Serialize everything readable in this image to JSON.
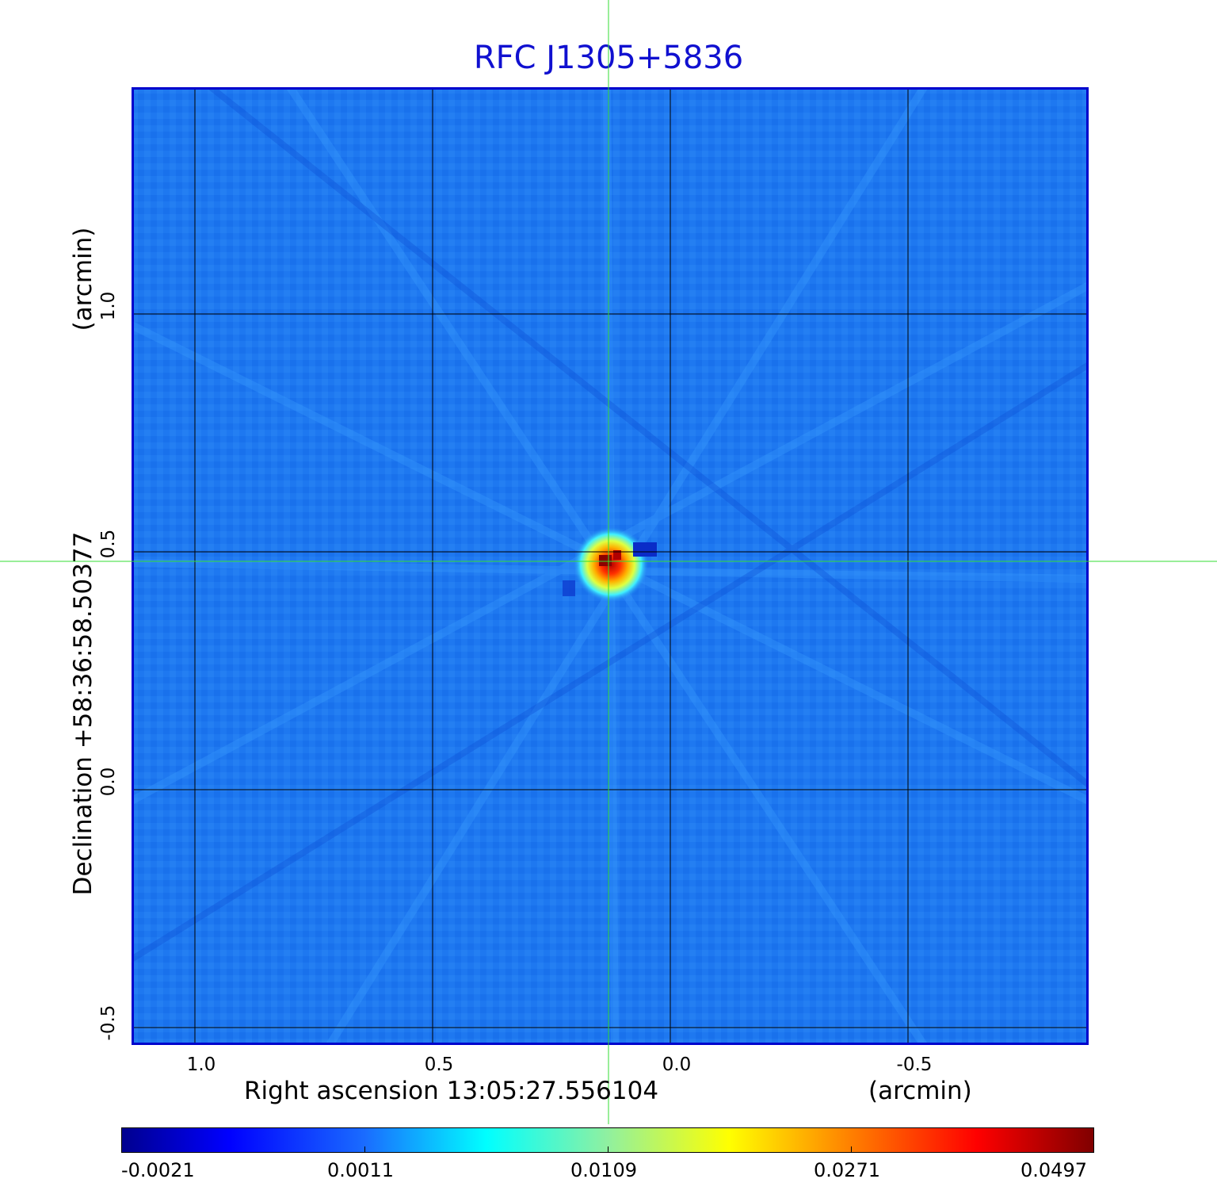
{
  "title": "RFC J1305+5836",
  "x_axis": {
    "label": "Right ascension  13:05:27.556104",
    "unit": "(arcmin)",
    "ticks": [
      "1.0",
      "0.5",
      "0.0",
      "-0.5"
    ]
  },
  "y_axis": {
    "label": "Declination  +58:36:58.50377",
    "unit": "(arcmin)",
    "ticks": [
      "1.0",
      "0.5",
      "0.0",
      "-0.5"
    ]
  },
  "colorbar": {
    "ticks": [
      "-0.0021",
      "0.0011",
      "0.0109",
      "0.0271",
      "0.0497"
    ],
    "colormap": "jet"
  },
  "colors": {
    "title": "#1010d0",
    "frame": "#0000cc",
    "background_field": "#1e78f0",
    "crosshair": "#33dd33",
    "grid": "#000000"
  }
}
